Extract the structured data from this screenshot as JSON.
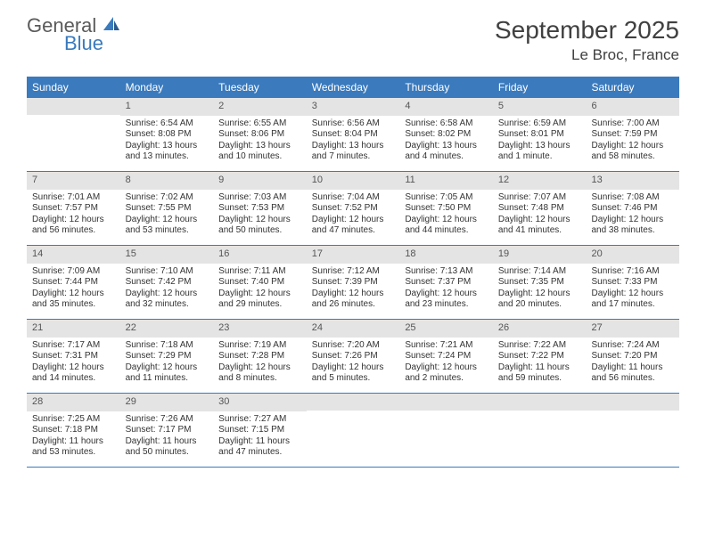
{
  "logo": {
    "text1": "General",
    "text2": "Blue"
  },
  "title": "September 2025",
  "location": "Le Broc, France",
  "colors": {
    "header_bg": "#3a7abd",
    "header_text": "#ffffff",
    "daynum_bg": "#e4e4e4",
    "daynum_text": "#555555",
    "body_text": "#333333",
    "rule": "#3a7abd"
  },
  "day_headers": [
    "Sunday",
    "Monday",
    "Tuesday",
    "Wednesday",
    "Thursday",
    "Friday",
    "Saturday"
  ],
  "weeks": [
    [
      {
        "n": "",
        "sr": "",
        "ss": "",
        "dl": ""
      },
      {
        "n": "1",
        "sr": "Sunrise: 6:54 AM",
        "ss": "Sunset: 8:08 PM",
        "dl": "Daylight: 13 hours and 13 minutes."
      },
      {
        "n": "2",
        "sr": "Sunrise: 6:55 AM",
        "ss": "Sunset: 8:06 PM",
        "dl": "Daylight: 13 hours and 10 minutes."
      },
      {
        "n": "3",
        "sr": "Sunrise: 6:56 AM",
        "ss": "Sunset: 8:04 PM",
        "dl": "Daylight: 13 hours and 7 minutes."
      },
      {
        "n": "4",
        "sr": "Sunrise: 6:58 AM",
        "ss": "Sunset: 8:02 PM",
        "dl": "Daylight: 13 hours and 4 minutes."
      },
      {
        "n": "5",
        "sr": "Sunrise: 6:59 AM",
        "ss": "Sunset: 8:01 PM",
        "dl": "Daylight: 13 hours and 1 minute."
      },
      {
        "n": "6",
        "sr": "Sunrise: 7:00 AM",
        "ss": "Sunset: 7:59 PM",
        "dl": "Daylight: 12 hours and 58 minutes."
      }
    ],
    [
      {
        "n": "7",
        "sr": "Sunrise: 7:01 AM",
        "ss": "Sunset: 7:57 PM",
        "dl": "Daylight: 12 hours and 56 minutes."
      },
      {
        "n": "8",
        "sr": "Sunrise: 7:02 AM",
        "ss": "Sunset: 7:55 PM",
        "dl": "Daylight: 12 hours and 53 minutes."
      },
      {
        "n": "9",
        "sr": "Sunrise: 7:03 AM",
        "ss": "Sunset: 7:53 PM",
        "dl": "Daylight: 12 hours and 50 minutes."
      },
      {
        "n": "10",
        "sr": "Sunrise: 7:04 AM",
        "ss": "Sunset: 7:52 PM",
        "dl": "Daylight: 12 hours and 47 minutes."
      },
      {
        "n": "11",
        "sr": "Sunrise: 7:05 AM",
        "ss": "Sunset: 7:50 PM",
        "dl": "Daylight: 12 hours and 44 minutes."
      },
      {
        "n": "12",
        "sr": "Sunrise: 7:07 AM",
        "ss": "Sunset: 7:48 PM",
        "dl": "Daylight: 12 hours and 41 minutes."
      },
      {
        "n": "13",
        "sr": "Sunrise: 7:08 AM",
        "ss": "Sunset: 7:46 PM",
        "dl": "Daylight: 12 hours and 38 minutes."
      }
    ],
    [
      {
        "n": "14",
        "sr": "Sunrise: 7:09 AM",
        "ss": "Sunset: 7:44 PM",
        "dl": "Daylight: 12 hours and 35 minutes."
      },
      {
        "n": "15",
        "sr": "Sunrise: 7:10 AM",
        "ss": "Sunset: 7:42 PM",
        "dl": "Daylight: 12 hours and 32 minutes."
      },
      {
        "n": "16",
        "sr": "Sunrise: 7:11 AM",
        "ss": "Sunset: 7:40 PM",
        "dl": "Daylight: 12 hours and 29 minutes."
      },
      {
        "n": "17",
        "sr": "Sunrise: 7:12 AM",
        "ss": "Sunset: 7:39 PM",
        "dl": "Daylight: 12 hours and 26 minutes."
      },
      {
        "n": "18",
        "sr": "Sunrise: 7:13 AM",
        "ss": "Sunset: 7:37 PM",
        "dl": "Daylight: 12 hours and 23 minutes."
      },
      {
        "n": "19",
        "sr": "Sunrise: 7:14 AM",
        "ss": "Sunset: 7:35 PM",
        "dl": "Daylight: 12 hours and 20 minutes."
      },
      {
        "n": "20",
        "sr": "Sunrise: 7:16 AM",
        "ss": "Sunset: 7:33 PM",
        "dl": "Daylight: 12 hours and 17 minutes."
      }
    ],
    [
      {
        "n": "21",
        "sr": "Sunrise: 7:17 AM",
        "ss": "Sunset: 7:31 PM",
        "dl": "Daylight: 12 hours and 14 minutes."
      },
      {
        "n": "22",
        "sr": "Sunrise: 7:18 AM",
        "ss": "Sunset: 7:29 PM",
        "dl": "Daylight: 12 hours and 11 minutes."
      },
      {
        "n": "23",
        "sr": "Sunrise: 7:19 AM",
        "ss": "Sunset: 7:28 PM",
        "dl": "Daylight: 12 hours and 8 minutes."
      },
      {
        "n": "24",
        "sr": "Sunrise: 7:20 AM",
        "ss": "Sunset: 7:26 PM",
        "dl": "Daylight: 12 hours and 5 minutes."
      },
      {
        "n": "25",
        "sr": "Sunrise: 7:21 AM",
        "ss": "Sunset: 7:24 PM",
        "dl": "Daylight: 12 hours and 2 minutes."
      },
      {
        "n": "26",
        "sr": "Sunrise: 7:22 AM",
        "ss": "Sunset: 7:22 PM",
        "dl": "Daylight: 11 hours and 59 minutes."
      },
      {
        "n": "27",
        "sr": "Sunrise: 7:24 AM",
        "ss": "Sunset: 7:20 PM",
        "dl": "Daylight: 11 hours and 56 minutes."
      }
    ],
    [
      {
        "n": "28",
        "sr": "Sunrise: 7:25 AM",
        "ss": "Sunset: 7:18 PM",
        "dl": "Daylight: 11 hours and 53 minutes."
      },
      {
        "n": "29",
        "sr": "Sunrise: 7:26 AM",
        "ss": "Sunset: 7:17 PM",
        "dl": "Daylight: 11 hours and 50 minutes."
      },
      {
        "n": "30",
        "sr": "Sunrise: 7:27 AM",
        "ss": "Sunset: 7:15 PM",
        "dl": "Daylight: 11 hours and 47 minutes."
      },
      {
        "n": "",
        "sr": "",
        "ss": "",
        "dl": ""
      },
      {
        "n": "",
        "sr": "",
        "ss": "",
        "dl": ""
      },
      {
        "n": "",
        "sr": "",
        "ss": "",
        "dl": ""
      },
      {
        "n": "",
        "sr": "",
        "ss": "",
        "dl": ""
      }
    ]
  ]
}
